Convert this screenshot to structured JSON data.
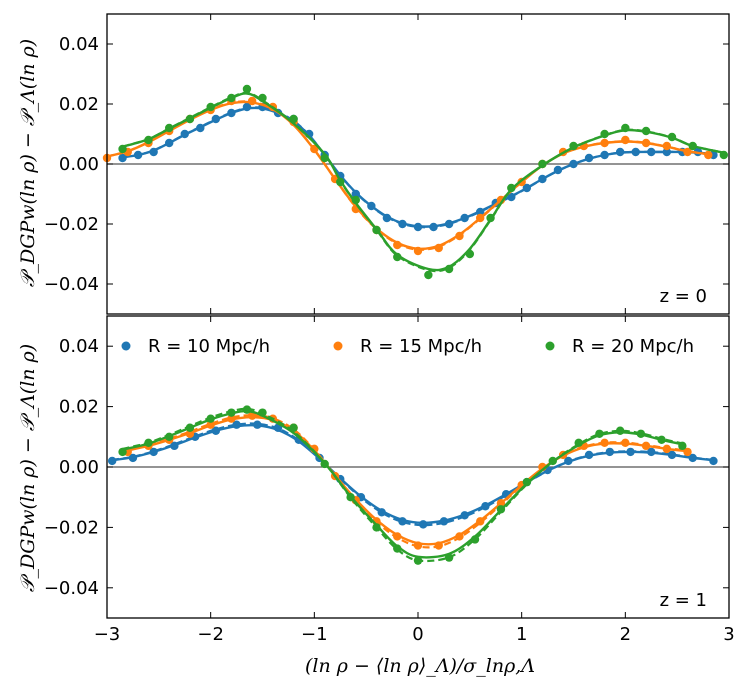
{
  "chart_data": {
    "type": "line",
    "xlabel": "(ln ρ − ⟨ln ρ⟩_Λ)/σ_lnρ,Λ",
    "ylabel": "𝒫_DGPw(ln ρ) − 𝒫_Λ(ln ρ)",
    "xlim": [
      -3,
      3
    ],
    "ylim": [
      -0.05,
      0.05
    ],
    "x_ticks": [
      -3,
      -2,
      -1,
      0,
      1,
      2,
      3
    ],
    "x_tick_labels": [
      "−3",
      "−2",
      "−1",
      "0",
      "1",
      "2",
      "3"
    ],
    "y_ticks": [
      -0.04,
      -0.02,
      0.0,
      0.02,
      0.04
    ],
    "y_tick_labels": [
      "−0.04",
      "−0.02",
      "0.00",
      "0.02",
      "0.04"
    ],
    "legend": {
      "location": "top of lower panel",
      "entries": [
        {
          "label": "R = 10 Mpc/h",
          "color": "#1f77b4"
        },
        {
          "label": "R = 15 Mpc/h",
          "color": "#ff7f0e"
        },
        {
          "label": "R = 20 Mpc/h",
          "color": "#2ca02c"
        }
      ]
    },
    "panels": [
      {
        "label": "z = 0",
        "series": [
          {
            "name": "R = 10 Mpc/h",
            "color": "#1f77b4",
            "x": [
              -2.85,
              -2.7,
              -2.55,
              -2.4,
              -2.25,
              -2.1,
              -1.95,
              -1.8,
              -1.65,
              -1.5,
              -1.35,
              -1.2,
              -1.05,
              -0.9,
              -0.75,
              -0.6,
              -0.45,
              -0.3,
              -0.15,
              0.0,
              0.15,
              0.3,
              0.45,
              0.6,
              0.75,
              0.9,
              1.05,
              1.2,
              1.35,
              1.5,
              1.65,
              1.8,
              1.95,
              2.1,
              2.25,
              2.4,
              2.55,
              2.7,
              2.85
            ],
            "dots": [
              0.002,
              0.003,
              0.004,
              0.007,
              0.01,
              0.012,
              0.015,
              0.017,
              0.019,
              0.019,
              0.017,
              0.015,
              0.01,
              0.003,
              -0.004,
              -0.01,
              -0.014,
              -0.018,
              -0.02,
              -0.021,
              -0.021,
              -0.02,
              -0.018,
              -0.016,
              -0.013,
              -0.011,
              -0.008,
              -0.005,
              -0.002,
              0.0,
              0.002,
              0.003,
              0.004,
              0.004,
              0.004,
              0.004,
              0.004,
              0.004,
              0.003
            ]
          },
          {
            "name": "R = 15 Mpc/h",
            "color": "#ff7f0e",
            "x": [
              -3.0,
              -2.8,
              -2.6,
              -2.4,
              -2.2,
              -2.0,
              -1.8,
              -1.6,
              -1.4,
              -1.2,
              -1.0,
              -0.8,
              -0.6,
              -0.4,
              -0.2,
              0.0,
              0.2,
              0.4,
              0.6,
              0.8,
              1.0,
              1.2,
              1.4,
              1.6,
              1.8,
              2.0,
              2.2,
              2.4,
              2.6,
              2.8
            ],
            "dots": [
              0.002,
              0.004,
              0.007,
              0.011,
              0.015,
              0.018,
              0.021,
              0.021,
              0.019,
              0.014,
              0.005,
              -0.005,
              -0.015,
              -0.022,
              -0.027,
              -0.029,
              -0.028,
              -0.024,
              -0.018,
              -0.012,
              -0.006,
              0.0,
              0.004,
              0.006,
              0.007,
              0.008,
              0.007,
              0.006,
              0.004,
              0.003
            ]
          },
          {
            "name": "R = 20 Mpc/h",
            "color": "#2ca02c",
            "x": [
              -2.85,
              -2.6,
              -2.4,
              -2.2,
              -2.0,
              -1.8,
              -1.65,
              -1.5,
              -1.2,
              -0.9,
              -0.75,
              -0.6,
              -0.4,
              -0.2,
              0.1,
              0.3,
              0.5,
              0.7,
              0.9,
              1.2,
              1.5,
              1.8,
              2.0,
              2.2,
              2.45,
              2.65,
              2.95
            ],
            "dots": [
              0.005,
              0.008,
              0.012,
              0.015,
              0.019,
              0.022,
              0.025,
              0.022,
              0.015,
              0.002,
              -0.006,
              -0.012,
              -0.022,
              -0.031,
              -0.037,
              -0.035,
              -0.03,
              -0.018,
              -0.008,
              0.0,
              0.006,
              0.01,
              0.012,
              0.011,
              0.009,
              0.006,
              0.003
            ]
          }
        ]
      },
      {
        "label": "z = 1",
        "series": [
          {
            "name": "R = 10 Mpc/h",
            "color": "#1f77b4",
            "x": [
              -2.95,
              -2.75,
              -2.55,
              -2.35,
              -2.15,
              -1.95,
              -1.75,
              -1.55,
              -1.35,
              -1.15,
              -0.95,
              -0.75,
              -0.55,
              -0.35,
              -0.15,
              0.05,
              0.25,
              0.45,
              0.65,
              0.85,
              1.05,
              1.25,
              1.45,
              1.65,
              1.85,
              2.05,
              2.25,
              2.45,
              2.65,
              2.85
            ],
            "dots": [
              0.002,
              0.003,
              0.005,
              0.007,
              0.01,
              0.012,
              0.014,
              0.014,
              0.013,
              0.009,
              0.003,
              -0.004,
              -0.01,
              -0.015,
              -0.018,
              -0.019,
              -0.018,
              -0.016,
              -0.013,
              -0.009,
              -0.005,
              -0.001,
              0.002,
              0.004,
              0.005,
              0.005,
              0.005,
              0.004,
              0.003,
              0.002
            ]
          },
          {
            "name": "R = 15 Mpc/h",
            "color": "#ff7f0e",
            "x": [
              -2.8,
              -2.6,
              -2.4,
              -2.2,
              -2.0,
              -1.8,
              -1.6,
              -1.4,
              -1.2,
              -1.0,
              -0.8,
              -0.6,
              -0.4,
              -0.2,
              0.0,
              0.2,
              0.4,
              0.6,
              0.8,
              1.0,
              1.2,
              1.4,
              1.6,
              1.8,
              2.0,
              2.2,
              2.4,
              2.6
            ],
            "dots": [
              0.005,
              0.007,
              0.009,
              0.011,
              0.014,
              0.016,
              0.017,
              0.016,
              0.013,
              0.006,
              -0.003,
              -0.011,
              -0.018,
              -0.023,
              -0.026,
              -0.026,
              -0.023,
              -0.018,
              -0.012,
              -0.006,
              0.0,
              0.004,
              0.007,
              0.008,
              0.008,
              0.007,
              0.006,
              0.005
            ]
          },
          {
            "name": "R = 20 Mpc/h",
            "color": "#2ca02c",
            "x": [
              -2.85,
              -2.6,
              -2.4,
              -2.2,
              -2.0,
              -1.8,
              -1.65,
              -1.5,
              -1.2,
              -0.9,
              -0.65,
              -0.4,
              -0.2,
              0.0,
              0.3,
              0.55,
              0.8,
              1.05,
              1.3,
              1.55,
              1.75,
              1.95,
              2.15,
              2.35,
              2.55
            ],
            "dots": [
              0.005,
              0.008,
              0.01,
              0.013,
              0.016,
              0.018,
              0.019,
              0.018,
              0.013,
              0.001,
              -0.01,
              -0.02,
              -0.027,
              -0.031,
              -0.03,
              -0.024,
              -0.014,
              -0.005,
              0.002,
              0.008,
              0.011,
              0.012,
              0.011,
              0.009,
              0.007
            ]
          }
        ]
      }
    ]
  }
}
